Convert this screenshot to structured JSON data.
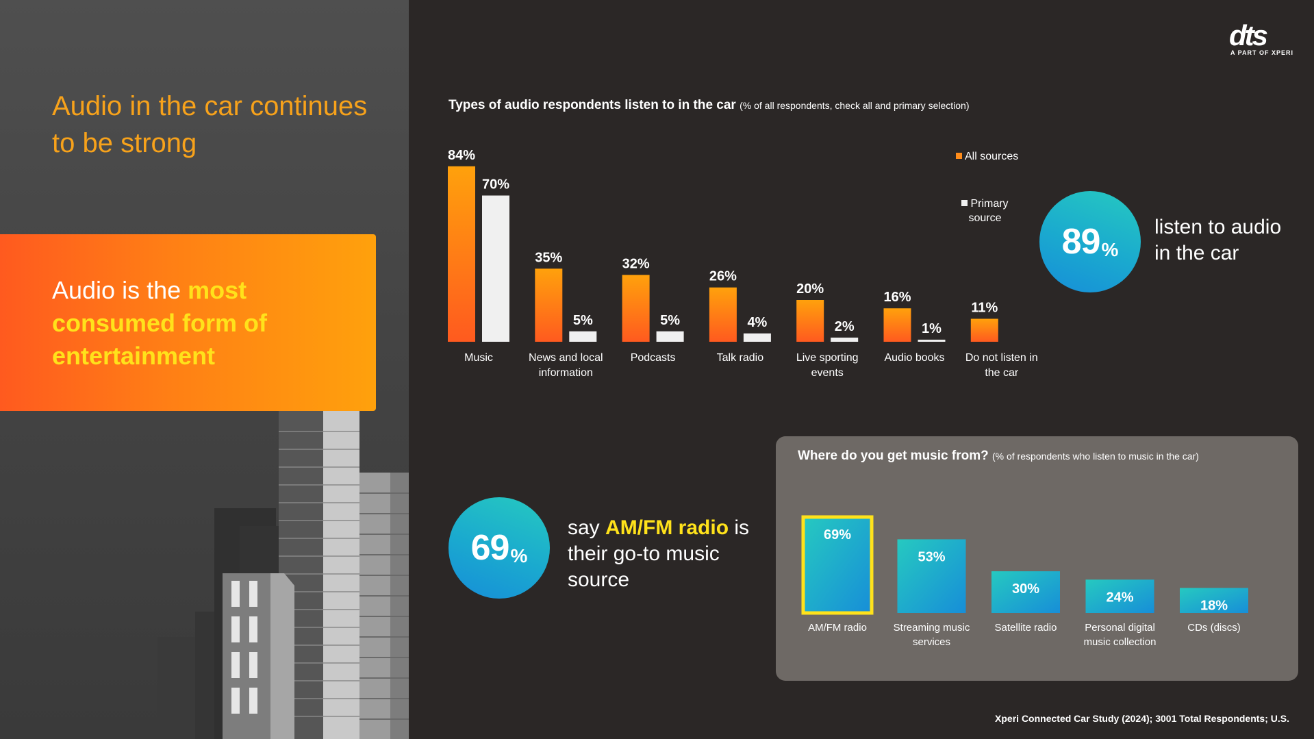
{
  "left": {
    "title": "Audio in the car continues to be strong",
    "highlight": {
      "pre": "Audio is the ",
      "emphasis": "most consumed form of entertainment"
    }
  },
  "logo": {
    "mark": "dts",
    "sub": "A PART OF XPERI"
  },
  "colors": {
    "orange_bar_top": "#ffa10c",
    "orange_bar_bottom": "#ff5a1f",
    "white_bar": "#f0f0f0",
    "teal": "#26c9c0",
    "blue": "#178ed8",
    "accent_yellow": "#ffe21b",
    "title_orange": "#f7a21b"
  },
  "audio_chart": {
    "title": "Types of audio respondents listen to in the car",
    "subtitle": "(% of all respondents, check all and primary selection)",
    "legend": {
      "all": "All sources",
      "primary": "Primary source"
    }
  },
  "stat_89": {
    "number": "89",
    "unit": "%",
    "text": "listen to audio in the car"
  },
  "stat_69": {
    "number": "69",
    "unit": "%",
    "pre": "say ",
    "emphasis": "AM/FM radio",
    "post": " is their go-to music source"
  },
  "music_chart": {
    "title": "Where do you get music from?",
    "subtitle": "(% of respondents who listen to music in the car)"
  },
  "chart_data": [
    {
      "type": "bar",
      "title": "Types of audio respondents listen to in the car",
      "subtitle": "(% of all respondents, check all and primary selection)",
      "categories": [
        "Music",
        "News and local information",
        "Podcasts",
        "Talk radio",
        "Live sporting events",
        "Audio books",
        "Do not listen in the car"
      ],
      "category_lines": [
        [
          "Music"
        ],
        [
          "News and local",
          "information"
        ],
        [
          "Podcasts"
        ],
        [
          "Talk radio"
        ],
        [
          "Live sporting",
          "events"
        ],
        [
          "Audio books"
        ],
        [
          "Do not listen in",
          "the car"
        ]
      ],
      "series": [
        {
          "name": "All sources",
          "values": [
            84,
            35,
            32,
            26,
            20,
            16,
            11
          ],
          "labels": [
            "84%",
            "35%",
            "32%",
            "26%",
            "20%",
            "16%",
            "11%"
          ]
        },
        {
          "name": "Primary source",
          "values": [
            70,
            5,
            5,
            4,
            2,
            1,
            null
          ],
          "labels": [
            "70%",
            "5%",
            "5%",
            "4%",
            "2%",
            "1%",
            null
          ]
        }
      ],
      "ylim": [
        0,
        100
      ],
      "grid": false,
      "legend_position": "top-right"
    },
    {
      "type": "bar",
      "title": "Where do you get music from?",
      "subtitle": "(% of respondents who listen to music in the car)",
      "categories": [
        "AM/FM radio",
        "Streaming music services",
        "Satellite radio",
        "Personal digital music collection",
        "CDs (discs)"
      ],
      "category_lines": [
        [
          "AM/FM radio"
        ],
        [
          "Streaming music",
          "services"
        ],
        [
          "Satellite radio"
        ],
        [
          "Personal digital",
          "music collection"
        ],
        [
          "CDs (discs)"
        ]
      ],
      "values": [
        69,
        53,
        30,
        24,
        18
      ],
      "labels": [
        "69%",
        "53%",
        "30%",
        "24%",
        "18%"
      ],
      "highlighted": "AM/FM radio",
      "ylim": [
        0,
        100
      ],
      "grid": false
    }
  ],
  "footer": "Xperi Connected Car Study (2024); 3001 Total Respondents; U.S."
}
